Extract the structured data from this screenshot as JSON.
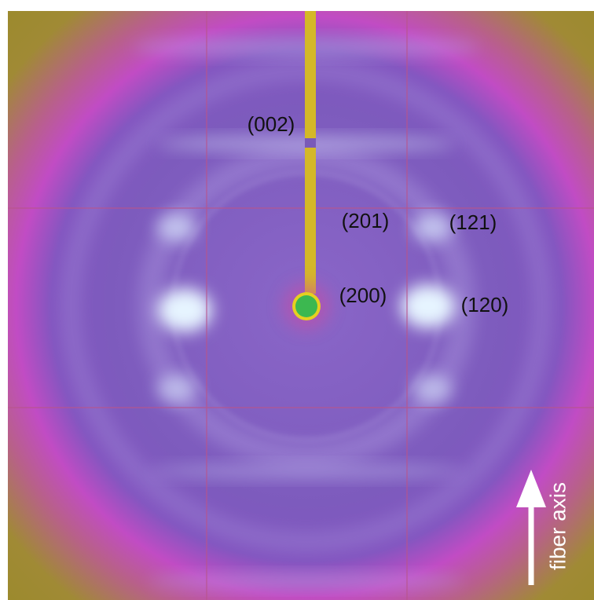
{
  "labels": [
    "(002)",
    "(201)",
    "(121)",
    "(200)",
    "(120)"
  ],
  "axis_label": "fiber axis"
}
